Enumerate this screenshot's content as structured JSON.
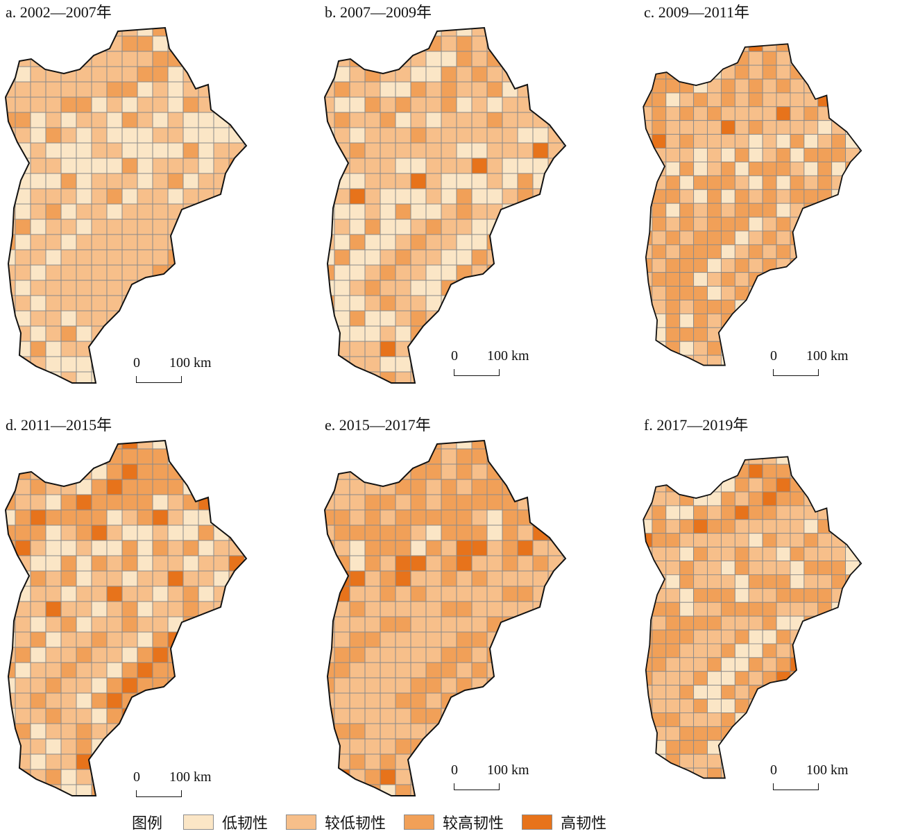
{
  "panels": [
    {
      "title": "a. 2002—2007年",
      "scale_zero": "0",
      "scale_dist": "100 km",
      "classes": [
        1,
        1,
        0,
        1,
        2,
        1,
        1,
        0,
        2,
        1,
        1,
        0,
        0,
        1,
        0,
        2,
        1,
        0,
        1,
        0,
        1,
        0,
        0,
        1,
        2,
        1,
        0,
        1,
        0,
        1,
        0,
        1,
        0,
        1,
        1,
        2,
        0,
        1,
        0,
        1
      ]
    },
    {
      "title": "b. 2007—2009年",
      "scale_zero": "0",
      "scale_dist": "100 km",
      "classes": [
        1,
        2,
        1,
        0,
        1,
        2,
        2,
        1,
        1,
        3,
        1,
        0,
        1,
        1,
        0,
        2,
        1,
        0,
        2,
        1,
        1,
        0,
        1,
        0,
        1,
        0,
        1,
        0,
        1,
        1,
        0,
        1,
        0,
        1,
        0,
        1,
        2,
        0,
        1,
        1
      ]
    },
    {
      "title": "c. 2009—2011年",
      "scale_zero": "0",
      "scale_dist": "100 km",
      "classes": [
        2,
        2,
        2,
        1,
        2,
        1,
        2,
        0,
        1,
        2,
        3,
        1,
        1,
        0,
        1,
        2,
        1,
        1,
        2,
        0,
        1,
        2,
        1,
        0,
        2,
        1,
        1,
        2,
        0,
        1,
        2,
        1,
        2,
        0,
        1,
        2,
        1,
        0,
        1,
        2
      ]
    },
    {
      "title": "d. 2011—2015年",
      "scale_zero": "0",
      "scale_dist": "100 km",
      "classes": [
        1,
        2,
        1,
        2,
        1,
        0,
        1,
        2,
        2,
        1,
        3,
        2,
        0,
        1,
        0,
        2,
        3,
        1,
        0,
        2,
        0,
        1,
        2,
        1,
        0,
        1,
        0,
        2,
        1,
        0,
        1,
        0,
        1,
        2,
        3,
        0,
        1,
        0,
        1,
        2
      ]
    },
    {
      "title": "e. 2015—2017年",
      "scale_zero": "0",
      "scale_dist": "100 km",
      "classes": [
        1,
        2,
        1,
        2,
        1,
        0,
        1,
        2,
        1,
        2,
        1,
        2,
        2,
        1,
        3,
        2,
        1,
        0,
        2,
        1,
        2,
        1,
        2,
        1,
        2,
        1,
        3,
        2,
        1,
        2,
        1,
        2,
        1,
        3,
        1,
        2,
        2,
        1,
        2,
        1
      ]
    },
    {
      "title": "f. 2017—2019年",
      "scale_zero": "0",
      "scale_dist": "100 km",
      "classes": [
        2,
        2,
        2,
        1,
        2,
        1,
        2,
        1,
        3,
        2,
        1,
        2,
        2,
        0,
        1,
        2,
        0,
        1,
        2,
        1,
        0,
        1,
        2,
        1,
        0,
        1,
        1,
        2,
        0,
        1,
        1,
        2,
        1,
        0,
        1,
        2,
        1,
        2,
        1,
        1
      ]
    }
  ],
  "legend": {
    "title": "图例",
    "items": [
      {
        "label": "低韧性",
        "color": "#fbe6c6"
      },
      {
        "label": "较低韧性",
        "color": "#f7bf8a"
      },
      {
        "label": "较高韧性",
        "color": "#f1a058"
      },
      {
        "label": "高韧性",
        "color": "#e7731b"
      }
    ]
  },
  "colors": {
    "class_fill": [
      "#fbe6c6",
      "#f7bf8a",
      "#f1a058",
      "#e7731b"
    ],
    "county_border": "#8a8a8a",
    "outline": "#111111"
  }
}
